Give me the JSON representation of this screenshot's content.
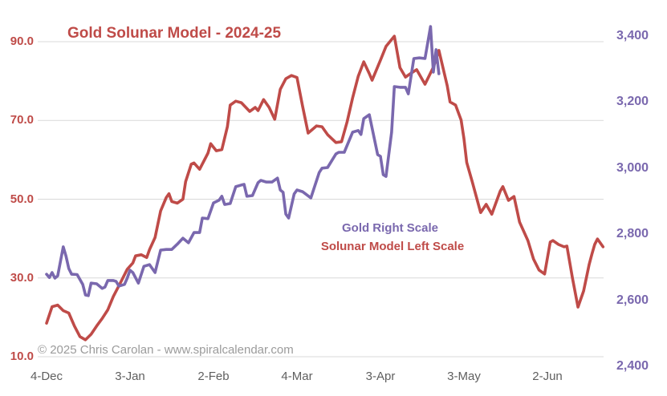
{
  "title": "Gold Solunar Model - 2024-25",
  "copyright": "© 2025 Chris Carolan - www.spiralcalendar.com",
  "legend": {
    "gold": "Gold Right Scale",
    "solunar": "Solunar Model Left Scale"
  },
  "colors": {
    "solunar_red": "#bf4b48",
    "gold_purple": "#7a68ae",
    "grid": "#d9d9d9",
    "x_label_gray": "#5f5f5f",
    "copyright_gray": "#9b9b9b"
  },
  "chart_data": {
    "type": "line",
    "title": "Gold Solunar Model - 2024-25",
    "x_unit": "days since 4-Dec-2024",
    "grid": "horizontal only",
    "x_ticks": [
      {
        "label": "4-Dec",
        "day": 0
      },
      {
        "label": "3-Jan",
        "day": 30
      },
      {
        "label": "2-Feb",
        "day": 60
      },
      {
        "label": "4-Mar",
        "day": 90
      },
      {
        "label": "3-Apr",
        "day": 120
      },
      {
        "label": "3-May",
        "day": 150
      },
      {
        "label": "2-Jun",
        "day": 180
      }
    ],
    "left_axis": {
      "side": "left",
      "series": "Solunar Model",
      "range": [
        10,
        90
      ],
      "ticks": [
        {
          "label": "90.0",
          "value": 90
        },
        {
          "label": "70.0",
          "value": 70
        },
        {
          "label": "50.0",
          "value": 50
        },
        {
          "label": "30.0",
          "value": 30
        },
        {
          "label": "10.0",
          "value": 10
        }
      ]
    },
    "right_axis": {
      "side": "right",
      "series": "Gold",
      "range": [
        2400,
        3400
      ],
      "ticks": [
        {
          "label": "3,400",
          "value": 3400
        },
        {
          "label": "3,200",
          "value": 3200
        },
        {
          "label": "3,000",
          "value": 3000
        },
        {
          "label": "2,800",
          "value": 2800
        },
        {
          "label": "2,600",
          "value": 2600
        },
        {
          "label": "2,400",
          "value": 2400
        }
      ]
    },
    "series": [
      {
        "name": "Solunar Model",
        "axis": "left",
        "color": "#bf4b48",
        "points": [
          [
            0,
            18.5
          ],
          [
            2,
            22.7
          ],
          [
            4,
            23.1
          ],
          [
            6,
            21.7
          ],
          [
            8,
            21.1
          ],
          [
            10,
            17.8
          ],
          [
            12,
            15.1
          ],
          [
            14,
            14.3
          ],
          [
            16,
            15.7
          ],
          [
            18,
            17.8
          ],
          [
            20,
            19.7
          ],
          [
            22,
            21.9
          ],
          [
            24,
            25.3
          ],
          [
            26,
            28.0
          ],
          [
            27,
            29.4
          ],
          [
            29,
            32.2
          ],
          [
            31,
            33.8
          ],
          [
            32,
            35.6
          ],
          [
            34,
            35.9
          ],
          [
            36,
            35.2
          ],
          [
            37,
            37.2
          ],
          [
            39,
            40.3
          ],
          [
            41,
            47.0
          ],
          [
            43,
            50.4
          ],
          [
            44,
            51.4
          ],
          [
            45,
            49.4
          ],
          [
            47,
            49.0
          ],
          [
            49,
            50.0
          ],
          [
            50,
            54.5
          ],
          [
            52,
            58.9
          ],
          [
            53,
            59.2
          ],
          [
            55,
            57.6
          ],
          [
            58,
            61.7
          ],
          [
            59,
            64.1
          ],
          [
            61,
            62.3
          ],
          [
            63,
            62.6
          ],
          [
            65,
            68.4
          ],
          [
            66,
            73.9
          ],
          [
            68,
            74.9
          ],
          [
            70,
            74.5
          ],
          [
            73,
            72.3
          ],
          [
            75,
            73.3
          ],
          [
            76,
            72.5
          ],
          [
            78,
            75.3
          ],
          [
            80,
            73.3
          ],
          [
            82,
            70.3
          ],
          [
            84,
            77.9
          ],
          [
            86,
            80.6
          ],
          [
            88,
            81.4
          ],
          [
            90,
            80.9
          ],
          [
            92,
            73.7
          ],
          [
            94,
            66.8
          ],
          [
            97,
            68.6
          ],
          [
            99,
            68.4
          ],
          [
            101,
            66.4
          ],
          [
            104,
            64.4
          ],
          [
            106,
            64.6
          ],
          [
            108,
            69.6
          ],
          [
            110,
            75.7
          ],
          [
            112,
            81.2
          ],
          [
            114,
            84.9
          ],
          [
            116,
            81.9
          ],
          [
            117,
            80.2
          ],
          [
            120,
            85.3
          ],
          [
            122,
            88.8
          ],
          [
            125,
            91.4
          ],
          [
            127,
            83.4
          ],
          [
            129,
            81.0
          ],
          [
            131,
            82.0
          ],
          [
            133,
            82.9
          ],
          [
            136,
            79.2
          ],
          [
            139,
            83.5
          ],
          [
            141,
            87.8
          ],
          [
            144,
            78.8
          ],
          [
            145,
            74.7
          ],
          [
            147,
            73.9
          ],
          [
            149,
            70.1
          ],
          [
            150,
            65.4
          ],
          [
            151,
            59.3
          ],
          [
            153,
            54.4
          ],
          [
            156,
            46.6
          ],
          [
            158,
            48.7
          ],
          [
            160,
            46.2
          ],
          [
            163,
            52.0
          ],
          [
            164,
            53.2
          ],
          [
            166,
            49.7
          ],
          [
            168,
            50.7
          ],
          [
            170,
            44.2
          ],
          [
            173,
            39.5
          ],
          [
            175,
            34.8
          ],
          [
            177,
            32.0
          ],
          [
            179,
            31.0
          ],
          [
            181,
            39.1
          ],
          [
            182,
            39.5
          ],
          [
            184,
            38.5
          ],
          [
            186,
            37.9
          ],
          [
            187,
            38.1
          ],
          [
            189,
            30.0
          ],
          [
            191,
            22.6
          ],
          [
            193,
            26.7
          ],
          [
            195,
            33.4
          ],
          [
            196,
            36.1
          ],
          [
            197,
            38.5
          ],
          [
            198,
            39.9
          ],
          [
            200,
            37.9
          ]
        ]
      },
      {
        "name": "Gold",
        "axis": "right",
        "color": "#7a68ae",
        "points": [
          [
            0,
            2679
          ],
          [
            1,
            2669
          ],
          [
            2,
            2684
          ],
          [
            3,
            2667
          ],
          [
            4,
            2674
          ],
          [
            6,
            2762
          ],
          [
            7,
            2733
          ],
          [
            8,
            2696
          ],
          [
            9,
            2679
          ],
          [
            11,
            2678
          ],
          [
            13,
            2648
          ],
          [
            14,
            2616
          ],
          [
            15,
            2614
          ],
          [
            16,
            2652
          ],
          [
            18,
            2650
          ],
          [
            20,
            2636
          ],
          [
            21,
            2640
          ],
          [
            22,
            2660
          ],
          [
            24,
            2660
          ],
          [
            25,
            2657
          ],
          [
            26,
            2643
          ],
          [
            28,
            2648
          ],
          [
            29,
            2667
          ],
          [
            30,
            2691
          ],
          [
            31,
            2684
          ],
          [
            33,
            2652
          ],
          [
            35,
            2703
          ],
          [
            37,
            2708
          ],
          [
            39,
            2684
          ],
          [
            41,
            2752
          ],
          [
            43,
            2754
          ],
          [
            45,
            2754
          ],
          [
            47,
            2770
          ],
          [
            49,
            2788
          ],
          [
            51,
            2774
          ],
          [
            53,
            2805
          ],
          [
            55,
            2805
          ],
          [
            56,
            2849
          ],
          [
            58,
            2847
          ],
          [
            60,
            2895
          ],
          [
            62,
            2903
          ],
          [
            63,
            2915
          ],
          [
            64,
            2890
          ],
          [
            66,
            2893
          ],
          [
            68,
            2944
          ],
          [
            70,
            2949
          ],
          [
            71,
            2951
          ],
          [
            72,
            2915
          ],
          [
            74,
            2917
          ],
          [
            76,
            2956
          ],
          [
            77,
            2963
          ],
          [
            79,
            2958
          ],
          [
            81,
            2958
          ],
          [
            83,
            2970
          ],
          [
            84,
            2934
          ],
          [
            85,
            2927
          ],
          [
            86,
            2861
          ],
          [
            87,
            2849
          ],
          [
            89,
            2922
          ],
          [
            90,
            2934
          ],
          [
            92,
            2929
          ],
          [
            95,
            2910
          ],
          [
            98,
            2987
          ],
          [
            99,
            3000
          ],
          [
            101,
            3002
          ],
          [
            104,
            3043
          ],
          [
            105,
            3048
          ],
          [
            107,
            3048
          ],
          [
            110,
            3109
          ],
          [
            112,
            3114
          ],
          [
            113,
            3102
          ],
          [
            114,
            3150
          ],
          [
            116,
            3162
          ],
          [
            119,
            3041
          ],
          [
            120,
            3036
          ],
          [
            121,
            2980
          ],
          [
            122,
            2975
          ],
          [
            124,
            3109
          ],
          [
            125,
            3247
          ],
          [
            127,
            3245
          ],
          [
            129,
            3245
          ],
          [
            130,
            3225
          ],
          [
            132,
            3332
          ],
          [
            134,
            3334
          ],
          [
            136,
            3332
          ],
          [
            138,
            3429
          ],
          [
            139,
            3291
          ],
          [
            140,
            3359
          ],
          [
            141,
            3286
          ]
        ]
      }
    ]
  }
}
